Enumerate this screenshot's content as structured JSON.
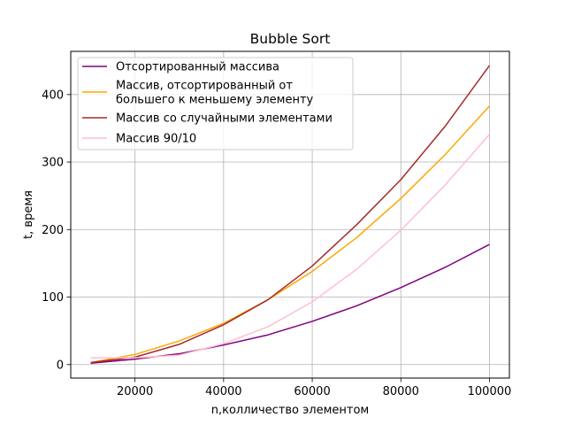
{
  "chart_data": {
    "type": "line",
    "title": "Bubble Sort",
    "xlabel": "n,колличество элементом",
    "ylabel": "t, время",
    "xlim": [
      5500,
      104500
    ],
    "ylim": [
      -20,
      464
    ],
    "xticks": [
      20000,
      40000,
      60000,
      80000,
      100000
    ],
    "yticks": [
      0,
      100,
      200,
      300,
      400
    ],
    "grid": true,
    "legend_position": "top-left",
    "x": [
      10000,
      20000,
      30000,
      40000,
      50000,
      60000,
      70000,
      80000,
      90000,
      100000
    ],
    "series": [
      {
        "name": "Отсортированный массива",
        "color": "#800080",
        "values": [
          2,
          8,
          16,
          29,
          44,
          64,
          87,
          114,
          144,
          178
        ]
      },
      {
        "name": "Массив, отсортированный от большего к меньшему элементу",
        "legend_lines": [
          "Массив, отсортированный от",
          "большего к меньшему элементу"
        ],
        "color": "#ffa500",
        "values": [
          3,
          15,
          35,
          61,
          96,
          138,
          188,
          246,
          311,
          383
        ]
      },
      {
        "name": "Массив со случайными элементами",
        "color": "#a52a2a",
        "values": [
          3,
          11,
          30,
          59,
          96,
          146,
          207,
          274,
          353,
          443
        ]
      },
      {
        "name": "Массив 90/10",
        "color": "#ffc0cb",
        "values": [
          10,
          10,
          14,
          31,
          56,
          93,
          141,
          199,
          266,
          341
        ]
      }
    ]
  }
}
